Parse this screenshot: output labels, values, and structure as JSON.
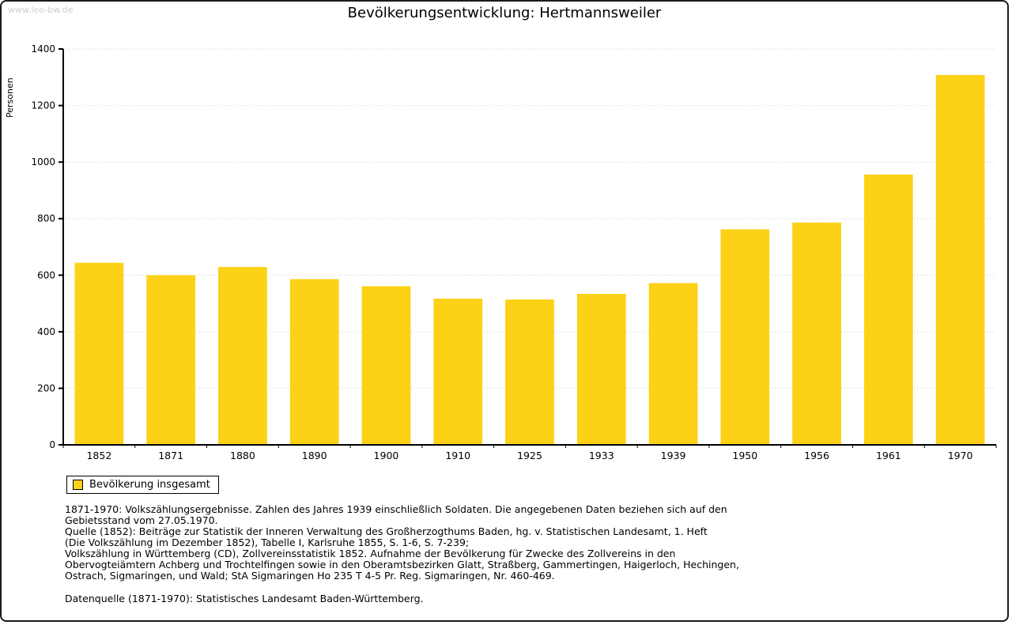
{
  "page": {
    "watermark": "www.leo-bw.de",
    "title": "Bevölkerungsentwicklung: Hertmannsweiler"
  },
  "chart_data": {
    "type": "bar",
    "title": "Bevölkerungsentwicklung: Hertmannsweiler",
    "xlabel": "",
    "ylabel": "Personen",
    "categories": [
      "1852",
      "1871",
      "1880",
      "1890",
      "1900",
      "1910",
      "1925",
      "1933",
      "1939",
      "1950",
      "1956",
      "1961",
      "1970"
    ],
    "values": [
      644,
      600,
      629,
      586,
      561,
      517,
      514,
      534,
      572,
      762,
      786,
      956,
      1308
    ],
    "ylim": [
      0,
      1400
    ],
    "ytick_step": 200,
    "grid": true,
    "bar_color": "#FCD116",
    "axis_color": "#000000",
    "legend": {
      "label": "Bevölkerung insgesamt",
      "position": "bottom-left"
    }
  },
  "footnotes": {
    "lines": [
      "1871-1970: Volkszählungsergebnisse. Zahlen des Jahres 1939 einschließlich Soldaten. Die angegebenen Daten beziehen sich auf den",
      "Gebietsstand vom 27.05.1970.",
      "Quelle (1852): Beiträge zur Statistik der Inneren Verwaltung des Großherzogthums Baden, hg. v. Statistischen Landesamt, 1. Heft",
      "(Die Volkszählung im Dezember 1852), Tabelle I, Karlsruhe 1855, S. 1-6, S. 7-239;",
      "Volkszählung in Württemberg (CD), Zollvereinsstatistik 1852. Aufnahme der Bevölkerung für Zwecke des Zollvereins in den",
      "Obervogteiämtern Achberg und Trochtelfingen sowie in den Oberamtsbezirken Glatt, Straßberg, Gammertingen, Haigerloch, Hechingen,",
      "Ostrach, Sigmaringen, und Wald; StA Sigmaringen Ho 235 T 4-5 Pr. Reg. Sigmaringen, Nr. 460-469."
    ],
    "datasource": "Datenquelle (1871-1970): Statistisches Landesamt Baden-Württemberg."
  }
}
